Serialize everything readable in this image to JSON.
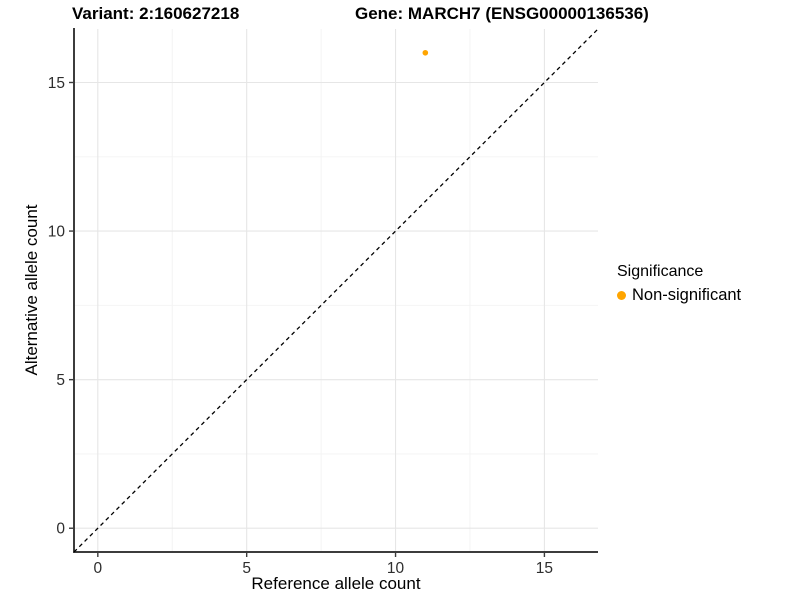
{
  "titles": {
    "variant": "Variant: 2:160627218",
    "gene": "Gene: MARCH7 (ENSG00000136536)"
  },
  "axes": {
    "x_label": "Reference allele count",
    "y_label": "Alternative allele count"
  },
  "legend": {
    "title": "Significance",
    "items": [
      {
        "label": "Non-significant",
        "color": "#FFA500"
      }
    ]
  },
  "chart_data": {
    "type": "scatter",
    "title_left": "Variant: 2:160627218",
    "title_right": "Gene: MARCH7 (ENSG00000136536)",
    "xlabel": "Reference allele count",
    "ylabel": "Alternative allele count",
    "xlim": [
      -0.8,
      16.8
    ],
    "ylim": [
      -0.8,
      16.8
    ],
    "x_ticks": [
      0,
      5,
      10,
      15
    ],
    "y_ticks": [
      0,
      5,
      10,
      15
    ],
    "x_minor_ticks": [
      2.5,
      7.5,
      12.5
    ],
    "y_minor_ticks": [
      2.5,
      7.5,
      12.5
    ],
    "grid": true,
    "legend_position": "right",
    "reference_line": {
      "type": "identity",
      "equation": "y = x",
      "style": "dashed",
      "color": "#000000"
    },
    "series": [
      {
        "name": "Non-significant",
        "color": "#FFA500",
        "points": [
          {
            "x": 11,
            "y": 16
          }
        ]
      }
    ]
  },
  "colors": {
    "point": "#FFA500",
    "grid_major": "#e6e6e6",
    "grid_minor": "#f3f3f3",
    "axis_line": "#3c3c3c",
    "tick_text": "#2e2e2e",
    "dashed_line": "#000000"
  }
}
